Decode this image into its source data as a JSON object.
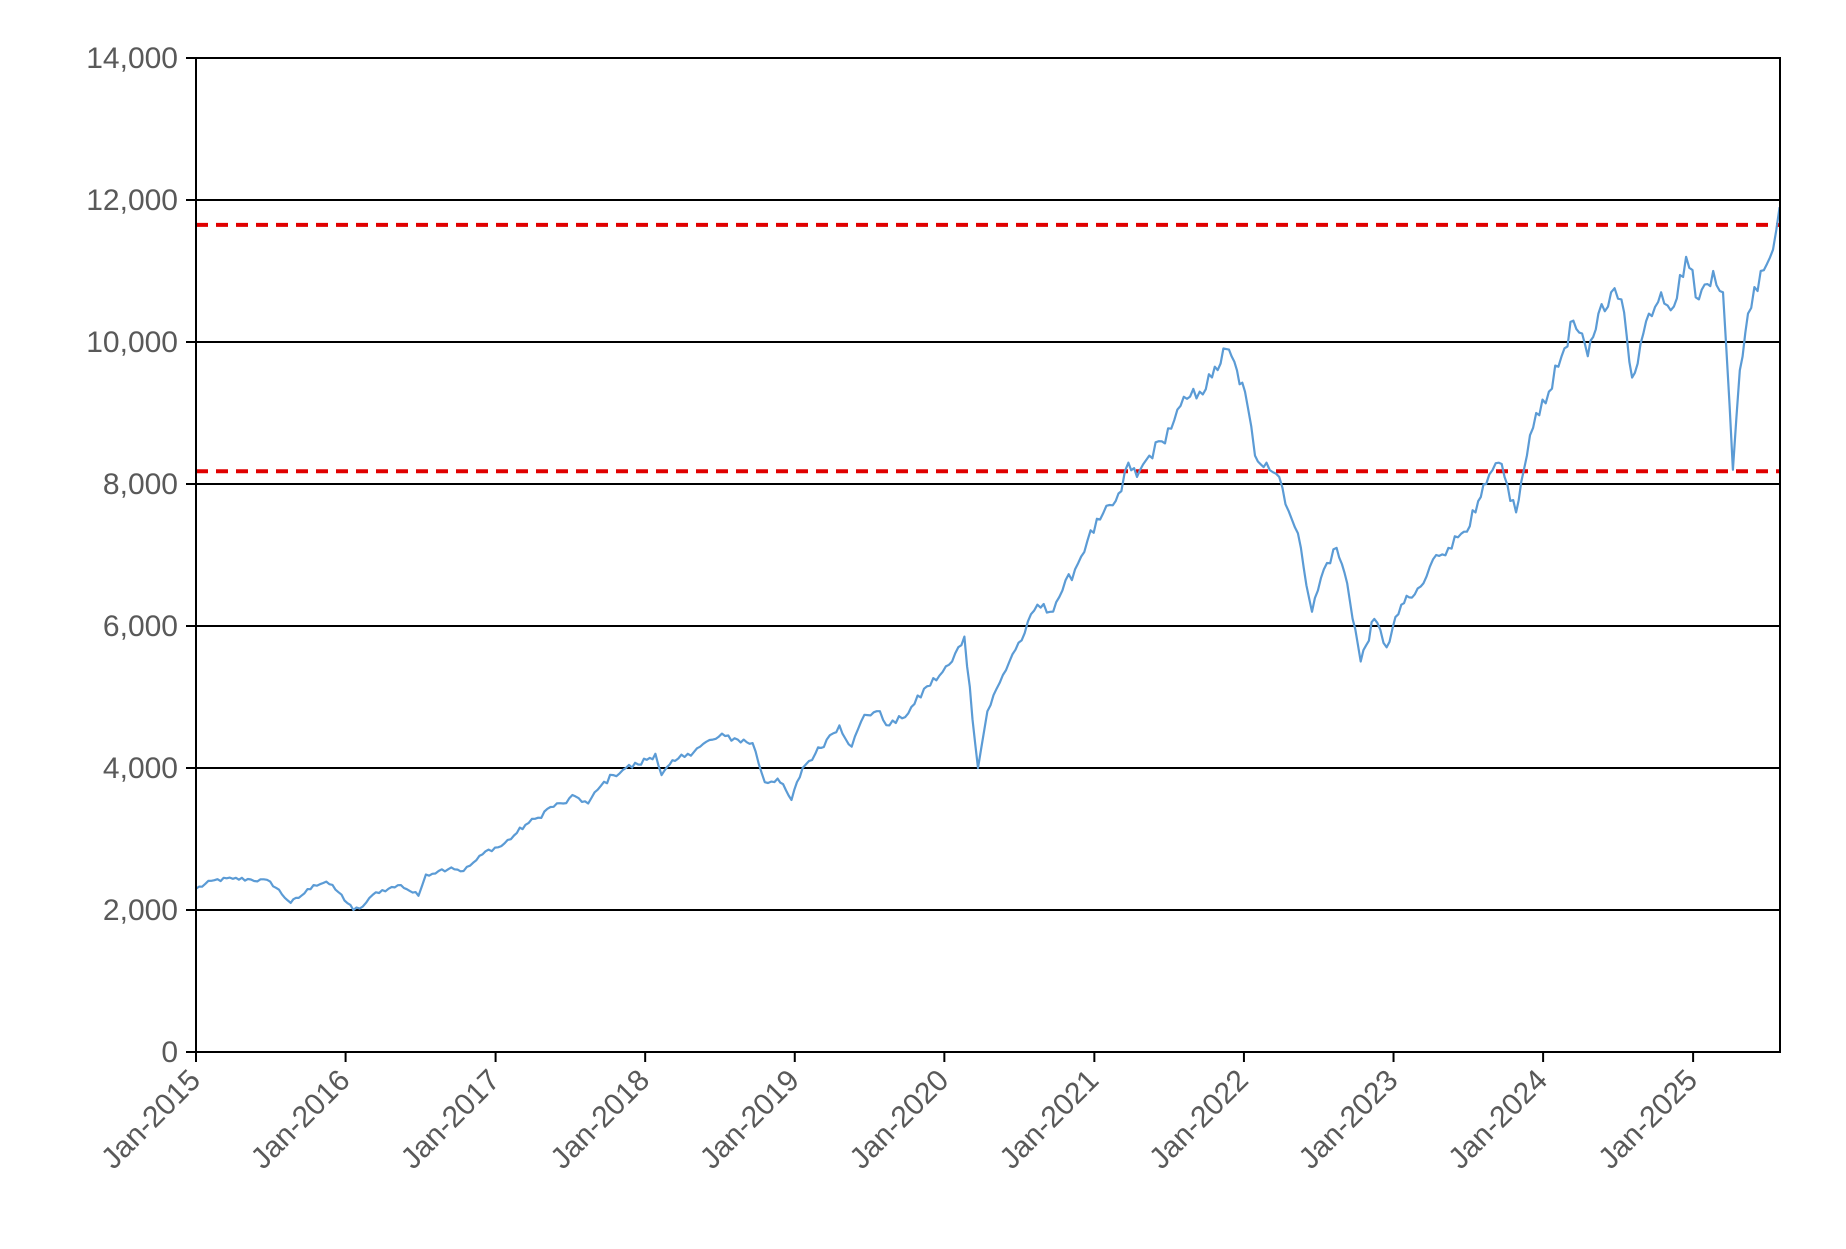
{
  "chart_data": {
    "type": "line",
    "title": "",
    "xlabel": "",
    "ylabel": "",
    "ylim": [
      0,
      14000
    ],
    "y_ticks": [
      0,
      2000,
      4000,
      6000,
      8000,
      10000,
      12000,
      14000
    ],
    "y_tick_labels": [
      "0",
      "2,000",
      "4,000",
      "6,000",
      "8,000",
      "10,000",
      "12,000",
      "14,000"
    ],
    "x_range": [
      "2015-01-01",
      "2025-08-01"
    ],
    "x_ticks": [
      "2015-01-01",
      "2016-01-01",
      "2017-01-01",
      "2018-01-01",
      "2019-01-01",
      "2020-01-01",
      "2021-01-01",
      "2022-01-01",
      "2023-01-01",
      "2024-01-01",
      "2025-01-01"
    ],
    "x_tick_labels": [
      "Jan-2015",
      "Jan-2016",
      "Jan-2017",
      "Jan-2018",
      "Jan-2019",
      "Jan-2020",
      "Jan-2021",
      "Jan-2022",
      "Jan-2023",
      "Jan-2024",
      "Jan-2025"
    ],
    "grid": "horizontal",
    "legend": "none",
    "colors": {
      "series": "#5B9BD5",
      "reference_lines": "#E00000",
      "gridlines": "#000000",
      "axis": "#000000",
      "tick_labels": "#595959"
    },
    "reference_lines": [
      {
        "y": 11650,
        "style": "dashed"
      },
      {
        "y": 8180,
        "style": "dashed"
      }
    ],
    "series": [
      {
        "x": [
          "2015-01-01",
          "2015-02-15",
          "2015-04-01",
          "2015-05-15",
          "2015-07-01",
          "2015-08-20",
          "2015-09-15",
          "2015-10-15",
          "2015-11-15",
          "2015-12-15",
          "2016-01-20",
          "2016-02-12",
          "2016-03-15",
          "2016-04-15",
          "2016-05-15",
          "2016-06-27",
          "2016-07-15",
          "2016-08-15",
          "2016-09-15",
          "2016-10-15",
          "2016-11-15",
          "2016-12-15",
          "2017-01-15",
          "2017-02-15",
          "2017-03-15",
          "2017-04-15",
          "2017-05-15",
          "2017-06-15",
          "2017-07-15",
          "2017-08-15",
          "2017-09-15",
          "2017-10-15",
          "2017-11-15",
          "2017-12-15",
          "2018-01-26",
          "2018-02-10",
          "2018-03-15",
          "2018-04-15",
          "2018-05-15",
          "2018-06-15",
          "2018-07-15",
          "2018-08-15",
          "2018-09-20",
          "2018-10-20",
          "2018-11-20",
          "2018-12-24",
          "2019-01-20",
          "2019-02-20",
          "2019-03-20",
          "2019-04-20",
          "2019-05-20",
          "2019-06-20",
          "2019-07-20",
          "2019-08-20",
          "2019-09-20",
          "2019-10-20",
          "2019-11-20",
          "2019-12-20",
          "2020-01-20",
          "2020-02-19",
          "2020-03-23",
          "2020-04-15",
          "2020-05-15",
          "2020-06-15",
          "2020-07-15",
          "2020-08-15",
          "2020-09-15",
          "2020-10-15",
          "2020-11-15",
          "2020-12-15",
          "2021-01-15",
          "2021-02-15",
          "2021-03-08",
          "2021-03-25",
          "2021-04-15",
          "2021-05-15",
          "2021-06-15",
          "2021-07-15",
          "2021-08-15",
          "2021-09-15",
          "2021-10-15",
          "2021-11-19",
          "2021-12-15",
          "2022-01-10",
          "2022-01-28",
          "2022-02-25",
          "2022-03-28",
          "2022-04-28",
          "2022-05-20",
          "2022-06-16",
          "2022-07-15",
          "2022-08-15",
          "2022-09-10",
          "2022-10-13",
          "2022-11-15",
          "2022-12-15",
          "2023-01-20",
          "2023-02-15",
          "2023-03-15",
          "2023-04-15",
          "2023-05-15",
          "2023-06-15",
          "2023-07-20",
          "2023-08-15",
          "2023-09-15",
          "2023-10-27",
          "2023-11-15",
          "2023-12-15",
          "2024-01-15",
          "2024-02-15",
          "2024-03-15",
          "2024-04-19",
          "2024-05-15",
          "2024-06-15",
          "2024-07-10",
          "2024-08-05",
          "2024-09-15",
          "2024-10-15",
          "2024-11-15",
          "2024-12-15",
          "2025-01-15",
          "2025-02-19",
          "2025-03-15",
          "2025-04-08",
          "2025-04-25",
          "2025-05-15",
          "2025-06-15",
          "2025-07-15",
          "2025-07-31"
        ],
        "values": [
          2300,
          2420,
          2440,
          2430,
          2400,
          2100,
          2200,
          2350,
          2400,
          2250,
          2000,
          2050,
          2250,
          2300,
          2350,
          2200,
          2500,
          2550,
          2600,
          2550,
          2700,
          2850,
          2900,
          3050,
          3200,
          3300,
          3450,
          3500,
          3600,
          3500,
          3750,
          3900,
          4000,
          4050,
          4200,
          3900,
          4100,
          4200,
          4300,
          4400,
          4450,
          4400,
          4350,
          3800,
          3850,
          3550,
          4000,
          4200,
          4400,
          4600,
          4300,
          4750,
          4800,
          4600,
          4700,
          4900,
          5150,
          5300,
          5500,
          5850,
          4000,
          4800,
          5200,
          5600,
          5900,
          6300,
          6200,
          6500,
          6800,
          7200,
          7500,
          7700,
          7900,
          8300,
          8100,
          8400,
          8600,
          8900,
          9200,
          9300,
          9500,
          9900,
          9600,
          9100,
          8400,
          8300,
          8100,
          7500,
          7100,
          6200,
          6800,
          7100,
          6600,
          5500,
          6100,
          5700,
          6300,
          6400,
          6600,
          7000,
          7100,
          7300,
          7600,
          8000,
          8300,
          7600,
          8200,
          9000,
          9300,
          9800,
          10300,
          9800,
          10400,
          10700,
          10600,
          9500,
          10400,
          10700,
          10500,
          11200,
          10600,
          11000,
          10700,
          8200,
          9600,
          10400,
          11000,
          11300,
          11900
        ]
      }
    ]
  }
}
